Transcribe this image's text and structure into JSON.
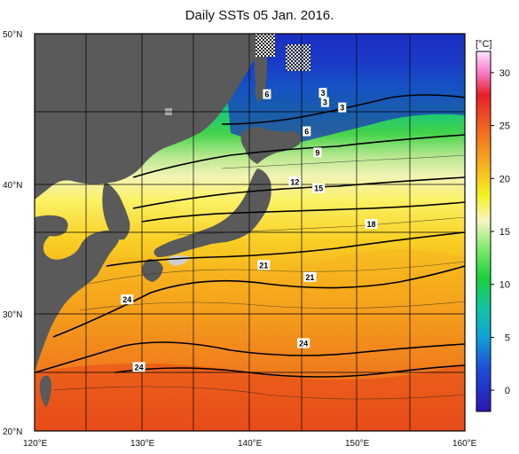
{
  "title": "Daily SSTs 05 Jan. 2016.",
  "lat_labels": [
    "50°N",
    "40°N",
    "30°N",
    "20°N"
  ],
  "lon_labels": [
    "120°E",
    "130°E",
    "140°E",
    "150°E",
    "160°E"
  ],
  "colorbar": {
    "unit": "[°C]",
    "ticks": [
      "30",
      "25",
      "20",
      "15",
      "10",
      "5",
      "0"
    ],
    "tick_values": [
      30,
      25,
      20,
      15,
      10,
      5,
      0
    ],
    "min": -2,
    "max": 32
  },
  "contour_labels": [
    {
      "text": "6",
      "lon": 141.6,
      "lat": 45.4
    },
    {
      "text": "3",
      "lon": 146.8,
      "lat": 45.5
    },
    {
      "text": "3",
      "lon": 147.0,
      "lat": 44.8
    },
    {
      "text": "3",
      "lon": 148.6,
      "lat": 44.4
    },
    {
      "text": "6",
      "lon": 145.3,
      "lat": 42.6
    },
    {
      "text": "9",
      "lon": 146.3,
      "lat": 41.0
    },
    {
      "text": "12",
      "lon": 144.2,
      "lat": 38.8
    },
    {
      "text": "15",
      "lon": 146.4,
      "lat": 38.3
    },
    {
      "text": "18",
      "lon": 151.3,
      "lat": 35.6
    },
    {
      "text": "21",
      "lon": 141.3,
      "lat": 32.5
    },
    {
      "text": "21",
      "lon": 145.6,
      "lat": 31.6
    },
    {
      "text": "24",
      "lon": 128.6,
      "lat": 29.9
    },
    {
      "text": "24",
      "lon": 145.0,
      "lat": 26.6
    },
    {
      "text": "24",
      "lon": 129.7,
      "lat": 24.8
    }
  ]
}
